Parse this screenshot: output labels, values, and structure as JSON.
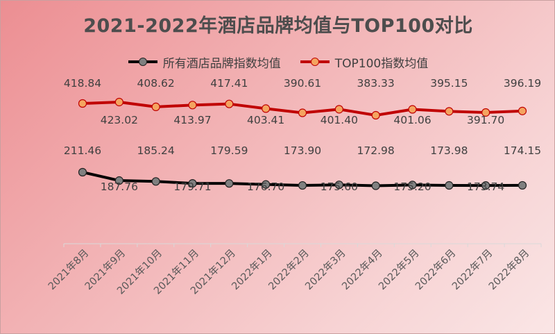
{
  "chart_data": {
    "type": "line",
    "title": "2021-2022年酒店品牌均值与TOP100对比",
    "categories": [
      "2021年8月",
      "2021年9月",
      "2021年10月",
      "2021年11月",
      "2021年12月",
      "2022年1月",
      "2022年2月",
      "2022年3月",
      "2022年4月",
      "2022年5月",
      "2022年6月",
      "2022年7月",
      "2022年8月"
    ],
    "series": [
      {
        "name": "所有酒店品牌指数均值",
        "values": [
          211.46,
          187.76,
          185.24,
          179.71,
          179.59,
          176.7,
          173.9,
          175.6,
          172.98,
          175.2,
          173.98,
          173.74,
          174.15
        ],
        "labels": [
          "211.46",
          "187.76",
          "185.24",
          "179.71",
          "179.59",
          "176.70",
          "173.90",
          "175.60",
          "172.98",
          "175.20",
          "173.98",
          "173.74",
          "174.15"
        ],
        "color": "#000000",
        "marker_color": "#808080"
      },
      {
        "name": "TOP100指数均值",
        "values": [
          418.84,
          423.02,
          408.62,
          413.97,
          417.41,
          403.41,
          390.61,
          401.4,
          383.33,
          401.06,
          395.15,
          391.7,
          396.19
        ],
        "labels": [
          "418.84",
          "423.02",
          "408.62",
          "413.97",
          "417.41",
          "403.41",
          "390.61",
          "401.40",
          "383.33",
          "401.06",
          "395.15",
          "391.70",
          "396.19"
        ],
        "color": "#c00000",
        "marker_color": "#f4a460"
      }
    ],
    "xlabel": "",
    "ylabel": "",
    "grid": false,
    "legend": "top"
  }
}
